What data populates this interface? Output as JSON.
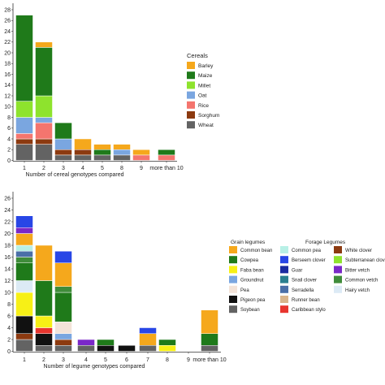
{
  "chart_data": [
    {
      "type": "bar",
      "stacked": true,
      "xlabel": "Number of cereal genotypes compared",
      "ylabel": "",
      "categories": [
        "1",
        "2",
        "3",
        "4",
        "5",
        "8",
        "9",
        "more than 10"
      ],
      "yticks": [
        "0",
        "2",
        "4",
        "6",
        "8",
        "10",
        "12",
        "14",
        "16",
        "18",
        "20",
        "22",
        "24",
        "26",
        "28"
      ],
      "ylim": [
        0,
        28
      ],
      "grid": false,
      "legend": {
        "title": "Cereals",
        "position": "right"
      },
      "series": [
        {
          "name": "Wheat",
          "color": "#636363",
          "values": [
            3,
            3,
            1,
            1,
            1,
            1,
            0,
            0
          ]
        },
        {
          "name": "Sorghum",
          "color": "#8c3a10",
          "values": [
            1,
            1,
            1,
            1,
            0,
            0,
            0,
            0
          ]
        },
        {
          "name": "Rice",
          "color": "#f4756e",
          "values": [
            1,
            3,
            0,
            0,
            0,
            0,
            1,
            1
          ]
        },
        {
          "name": "Oat",
          "color": "#7aa6e0",
          "values": [
            3,
            1,
            2,
            0,
            0,
            1,
            0,
            0
          ]
        },
        {
          "name": "Millet",
          "color": "#8ee32d",
          "values": [
            3,
            4,
            0,
            0,
            0,
            0,
            0,
            0
          ]
        },
        {
          "name": "Maize",
          "color": "#1f7a1a",
          "values": [
            16,
            9,
            3,
            0,
            1,
            0,
            0,
            1
          ]
        },
        {
          "name": "Barley",
          "color": "#f5a81c",
          "values": [
            0,
            1,
            0,
            2,
            1,
            1,
            1,
            0
          ]
        }
      ]
    },
    {
      "type": "bar",
      "stacked": true,
      "xlabel": "Number of legume genotypes compared",
      "ylabel": "",
      "categories": [
        "1",
        "2",
        "3",
        "4",
        "5",
        "6",
        "7",
        "8",
        "9",
        "more than 10"
      ],
      "yticks": [
        "0",
        "2",
        "4",
        "6",
        "8",
        "10",
        "12",
        "14",
        "16",
        "18",
        "20",
        "22",
        "24",
        "26"
      ],
      "ylim": [
        0,
        26
      ],
      "grid": false,
      "legend": {
        "title": "",
        "position": "right"
      },
      "legend_groups": [
        {
          "title": "Grain legumes",
          "items": [
            "Common bean",
            "Cowpea",
            "Faba bean",
            "Groundnut",
            "Pea",
            "Pigeon pea",
            "Soybean"
          ]
        },
        {
          "title": "Forage Legumes",
          "items": [
            "Common pea",
            "Berseem clover",
            "Guar",
            "Snail clover",
            "Serradella",
            "Runner bean",
            "Caribbean stylo",
            "White clover",
            "Subterranean clover",
            "Bitter vetch",
            "Common vetch",
            "Hairy vetch"
          ]
        }
      ],
      "series": [
        {
          "name": "Soybean",
          "color": "#636363",
          "values": [
            2,
            1,
            1,
            1,
            0,
            0,
            1,
            0,
            0,
            1
          ]
        },
        {
          "name": "White clover",
          "color": "#8c3a10",
          "values": [
            1,
            0,
            1,
            0,
            0,
            0,
            0,
            0,
            0,
            0
          ]
        },
        {
          "name": "Pigeon pea",
          "color": "#111111",
          "values": [
            3,
            2,
            0,
            0,
            1,
            1,
            0,
            0,
            0,
            0
          ]
        },
        {
          "name": "Caribbean stylo",
          "color": "#e8352e",
          "values": [
            0,
            1,
            0,
            0,
            0,
            0,
            0,
            0,
            0,
            0
          ]
        },
        {
          "name": "Groundnut",
          "color": "#7aa6e0",
          "values": [
            0,
            0,
            1,
            0,
            0,
            0,
            0,
            0,
            0,
            0
          ]
        },
        {
          "name": "Pea",
          "color": "#f3e3d8",
          "values": [
            0,
            0,
            2,
            0,
            0,
            0,
            0,
            0,
            0,
            0
          ]
        },
        {
          "name": "Runner bean",
          "color": "#d9b58c",
          "values": [
            0,
            0,
            0,
            0,
            0,
            0,
            0,
            0,
            0,
            0
          ]
        },
        {
          "name": "Faba bean",
          "color": "#f7f016",
          "values": [
            4,
            2,
            0,
            0,
            0,
            0,
            0,
            1,
            0,
            0
          ]
        },
        {
          "name": "Hairy vetch",
          "color": "#dceaf5",
          "values": [
            2,
            0,
            0,
            0,
            0,
            0,
            0,
            0,
            0,
            0
          ]
        },
        {
          "name": "Cowpea",
          "color": "#1f7a1a",
          "values": [
            3,
            6,
            5,
            0,
            1,
            0,
            0,
            1,
            0,
            2
          ]
        },
        {
          "name": "Common vetch",
          "color": "#3f8c3a",
          "values": [
            1,
            0,
            1,
            0,
            0,
            0,
            0,
            0,
            0,
            0
          ]
        },
        {
          "name": "Serradella",
          "color": "#4a6fa8",
          "values": [
            1,
            0,
            0,
            0,
            0,
            0,
            0,
            0,
            0,
            0
          ]
        },
        {
          "name": "Common pea",
          "color": "#b8f0e6",
          "values": [
            1,
            0,
            0,
            0,
            0,
            0,
            0,
            0,
            0,
            0
          ]
        },
        {
          "name": "Common bean",
          "color": "#f5a81c",
          "values": [
            2,
            6,
            4,
            0,
            0,
            0,
            2,
            0,
            0,
            4
          ]
        },
        {
          "name": "Bitter vetch",
          "color": "#7a28c8",
          "values": [
            1,
            0,
            0,
            1,
            0,
            0,
            0,
            0,
            0,
            0
          ]
        },
        {
          "name": "Subterranean clover",
          "color": "#8ee32d",
          "values": [
            0,
            0,
            0,
            0,
            0,
            0,
            0,
            0,
            0,
            0
          ]
        },
        {
          "name": "Snail clover",
          "color": "#2a7f8f",
          "values": [
            0,
            0,
            0,
            0,
            0,
            0,
            0,
            0,
            0,
            0
          ]
        },
        {
          "name": "Guar",
          "color": "#1a2aa0",
          "values": [
            0,
            0,
            0,
            0,
            0,
            0,
            0,
            0,
            0,
            0
          ]
        },
        {
          "name": "Berseem clover",
          "color": "#2846e6",
          "values": [
            2,
            0,
            2,
            0,
            0,
            0,
            1,
            0,
            0,
            0
          ]
        }
      ]
    }
  ]
}
